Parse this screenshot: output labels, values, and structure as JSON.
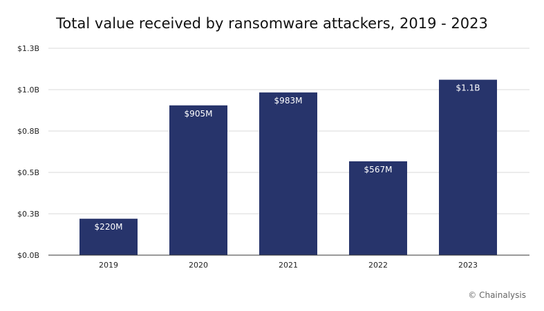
{
  "chart_data": {
    "type": "bar",
    "title": "Total value received by ransomware attackers, 2019 - 2023",
    "xlabel": "",
    "ylabel": "",
    "categories": [
      "2019",
      "2020",
      "2021",
      "2022",
      "2023"
    ],
    "values": [
      0.22,
      0.905,
      0.983,
      0.567,
      1.06
    ],
    "value_labels": [
      "$220M",
      "$905M",
      "$983M",
      "$567M",
      "$1.1B"
    ],
    "ylim": [
      0,
      1.25
    ],
    "y_ticks": [
      0,
      0.25,
      0.5,
      0.75,
      1.0,
      1.25
    ],
    "y_tick_labels": [
      "$0.0B",
      "$0.3B",
      "$0.5B",
      "$0.8B",
      "$1.0B",
      "$1.3B"
    ],
    "grid": true,
    "legend": "none",
    "bar_color": "#27346b",
    "label_color": "#ffffff",
    "grid_color": "#d9d9d9"
  },
  "credit": "© Chainalysis"
}
